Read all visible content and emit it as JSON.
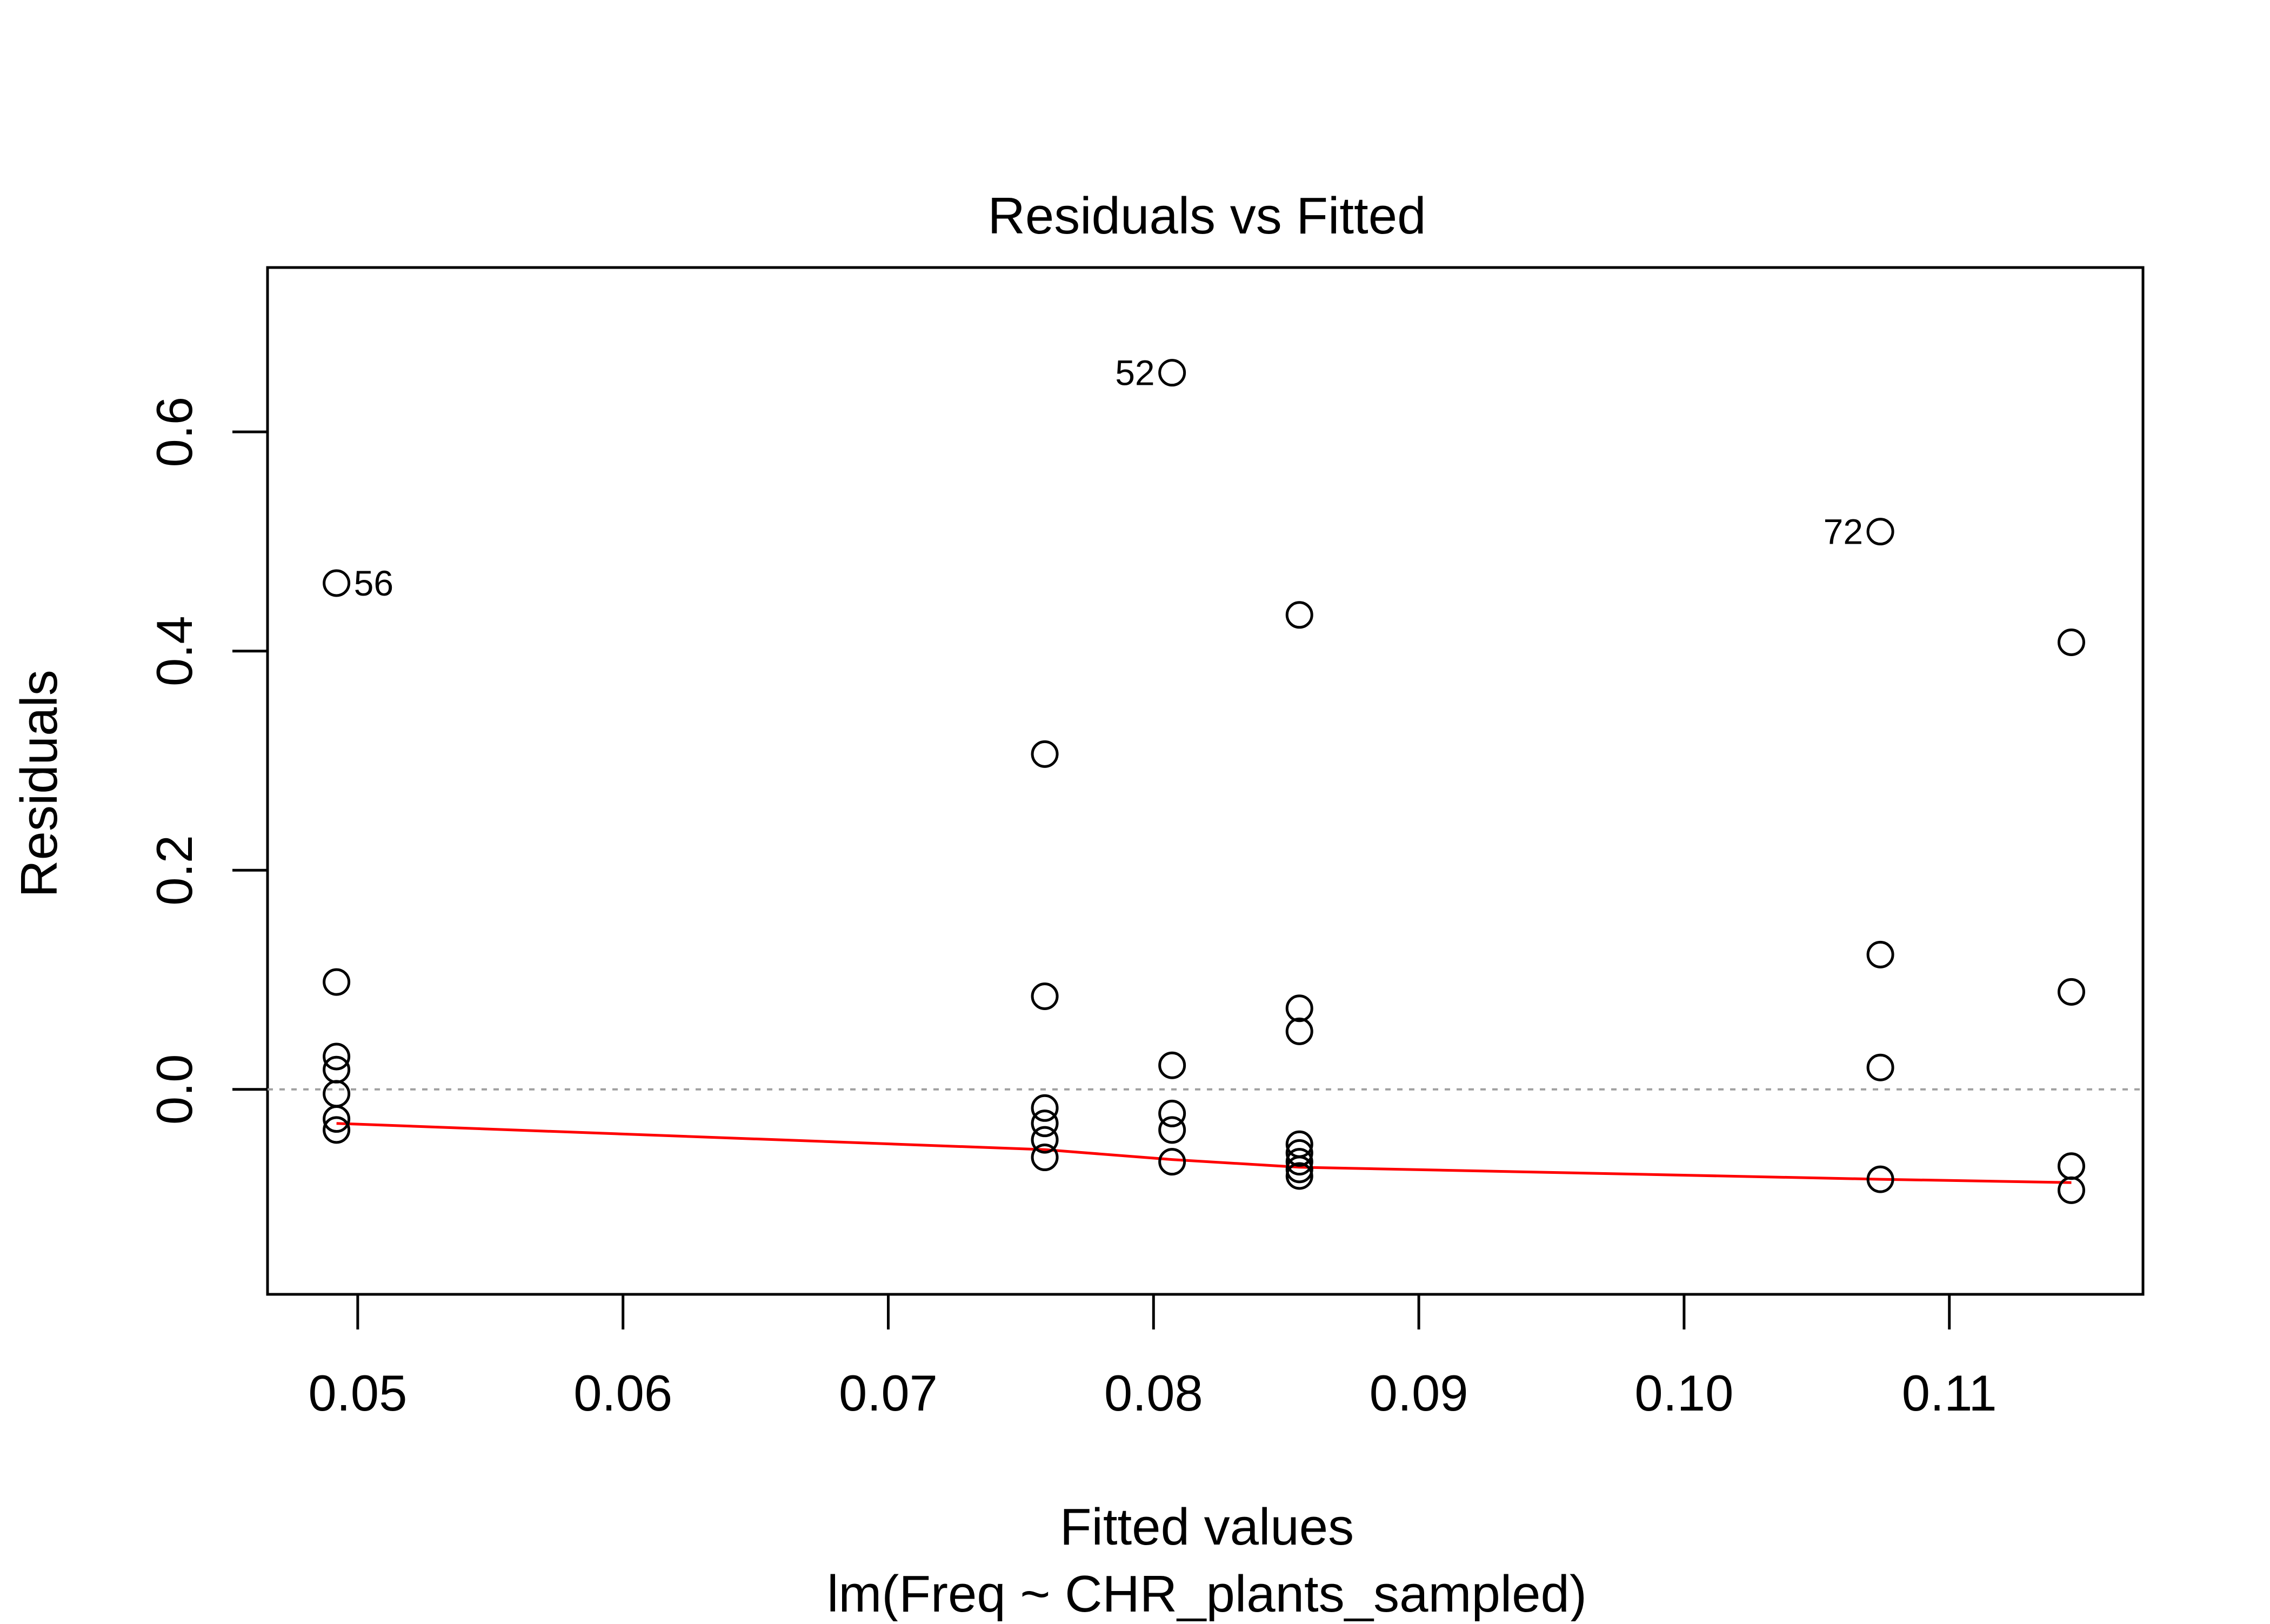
{
  "chart_data": {
    "type": "scatter",
    "title": "Residuals vs Fitted",
    "xlabel": "Fitted values",
    "xlabel_sub": "lm(Freq ~ CHR_plants_sampled)",
    "ylabel": "Residuals",
    "xlim": [
      0.0466,
      0.1173
    ],
    "ylim": [
      -0.187,
      0.75
    ],
    "x_ticks": [
      0.05,
      0.06,
      0.07,
      0.08,
      0.09,
      0.1,
      0.11
    ],
    "x_tick_labels": [
      "0.05",
      "0.06",
      "0.07",
      "0.08",
      "0.09",
      "0.10",
      "0.11"
    ],
    "y_ticks": [
      0.0,
      0.2,
      0.4,
      0.6
    ],
    "y_tick_labels": [
      "0.0",
      "0.2",
      "0.4",
      "0.6"
    ],
    "grid": false,
    "reference_line": {
      "y": 0.0,
      "style": "dotted",
      "color": "#a0a0a0"
    },
    "points": [
      {
        "x": 0.0492,
        "y": 0.462,
        "label": "56",
        "label_side": "right"
      },
      {
        "x": 0.0492,
        "y": 0.098
      },
      {
        "x": 0.0492,
        "y": 0.03
      },
      {
        "x": 0.0492,
        "y": 0.018
      },
      {
        "x": 0.0492,
        "y": -0.004
      },
      {
        "x": 0.0492,
        "y": -0.027
      },
      {
        "x": 0.0492,
        "y": -0.037
      },
      {
        "x": 0.0759,
        "y": 0.306
      },
      {
        "x": 0.0759,
        "y": 0.085
      },
      {
        "x": 0.0759,
        "y": -0.017
      },
      {
        "x": 0.0759,
        "y": -0.031
      },
      {
        "x": 0.0759,
        "y": -0.046
      },
      {
        "x": 0.0759,
        "y": -0.062
      },
      {
        "x": 0.0807,
        "y": 0.654,
        "label": "52",
        "label_side": "left"
      },
      {
        "x": 0.0807,
        "y": 0.022
      },
      {
        "x": 0.0807,
        "y": -0.022
      },
      {
        "x": 0.0807,
        "y": -0.037
      },
      {
        "x": 0.0807,
        "y": -0.066
      },
      {
        "x": 0.0855,
        "y": 0.433
      },
      {
        "x": 0.0855,
        "y": 0.074
      },
      {
        "x": 0.0855,
        "y": 0.053
      },
      {
        "x": 0.0855,
        "y": -0.05
      },
      {
        "x": 0.0855,
        "y": -0.058
      },
      {
        "x": 0.0855,
        "y": -0.066
      },
      {
        "x": 0.0855,
        "y": -0.073
      },
      {
        "x": 0.0855,
        "y": -0.079
      },
      {
        "x": 0.1074,
        "y": 0.509,
        "label": "72",
        "label_side": "left"
      },
      {
        "x": 0.1074,
        "y": 0.123
      },
      {
        "x": 0.1074,
        "y": 0.02
      },
      {
        "x": 0.1074,
        "y": -0.082
      },
      {
        "x": 0.1146,
        "y": 0.408
      },
      {
        "x": 0.1146,
        "y": 0.089
      },
      {
        "x": 0.1146,
        "y": -0.07
      },
      {
        "x": 0.1146,
        "y": -0.092
      }
    ],
    "smoother": {
      "color": "#ff0000",
      "x": [
        0.0492,
        0.0759,
        0.0807,
        0.0855,
        0.1074,
        0.1146
      ],
      "y": [
        -0.031,
        -0.055,
        -0.064,
        -0.071,
        -0.082,
        -0.085
      ]
    }
  }
}
